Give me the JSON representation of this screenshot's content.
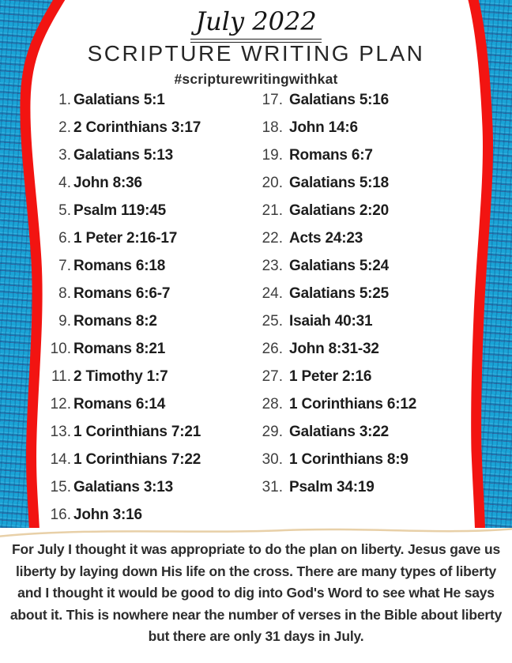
{
  "header": {
    "month_title": "July 2022",
    "main_title": "SCRIPTURE WRITING PLAN",
    "hashtag": "#scripturewritingwithkat"
  },
  "plan": {
    "left_column": [
      {
        "num": "1.",
        "ref": "Galatians 5:1"
      },
      {
        "num": "2.",
        "ref": "2 Corinthians 3:17"
      },
      {
        "num": "3.",
        "ref": "Galatians 5:13"
      },
      {
        "num": "4.",
        "ref": "John 8:36"
      },
      {
        "num": "5.",
        "ref": "Psalm 119:45"
      },
      {
        "num": "6.",
        "ref": "1 Peter 2:16-17"
      },
      {
        "num": "7.",
        "ref": "Romans 6:18"
      },
      {
        "num": "8.",
        "ref": "Romans 6:6-7"
      },
      {
        "num": "9.",
        "ref": "Romans 8:2"
      },
      {
        "num": "10.",
        "ref": "Romans 8:21"
      },
      {
        "num": "11.",
        "ref": "2 Timothy 1:7"
      },
      {
        "num": "12.",
        "ref": "Romans 6:14"
      },
      {
        "num": "13.",
        "ref": "1 Corinthians 7:21"
      },
      {
        "num": "14.",
        "ref": "1 Corinthians 7:22"
      },
      {
        "num": "15.",
        "ref": "Galatians 3:13"
      },
      {
        "num": "16.",
        "ref": "John 3:16"
      }
    ],
    "right_column": [
      {
        "num": "17.",
        "ref": "Galatians 5:16"
      },
      {
        "num": "18.",
        "ref": "John 14:6"
      },
      {
        "num": "19.",
        "ref": "Romans 6:7"
      },
      {
        "num": "20.",
        "ref": "Galatians 5:18"
      },
      {
        "num": "21.",
        "ref": "Galatians 2:20"
      },
      {
        "num": "22.",
        "ref": "Acts 24:23"
      },
      {
        "num": "23.",
        "ref": "Galatians 5:24"
      },
      {
        "num": "24.",
        "ref": "Galatians 5:25"
      },
      {
        "num": "25.",
        "ref": "Isaiah 40:31"
      },
      {
        "num": "26.",
        "ref": "John 8:31-32"
      },
      {
        "num": "27.",
        "ref": "1 Peter 2:16"
      },
      {
        "num": "28.",
        "ref": "1 Corinthians 6:12"
      },
      {
        "num": "29.",
        "ref": "Galatians 3:22"
      },
      {
        "num": "30.",
        "ref": "1 Corinthians 8:9"
      },
      {
        "num": "31.",
        "ref": "Psalm 34:19"
      }
    ]
  },
  "footer": {
    "paragraph": "For July I thought it was appropriate to do the plan on liberty. Jesus gave us liberty by laying down His life on the cross. There are many types of liberty and I thought it would be good to dig into God's Word to see what He says about it. This is nowhere near the number of verses in the Bible about liberty but there are only 31 days in July."
  },
  "colors": {
    "accent_red": "#f21411",
    "background_blue": "#1aa3d6",
    "divider_beige": "#e8d0a8",
    "text_ink": "#1d1d1d",
    "number_gray": "#3f3f3f",
    "paragraph_gray": "#2d2d2d"
  }
}
